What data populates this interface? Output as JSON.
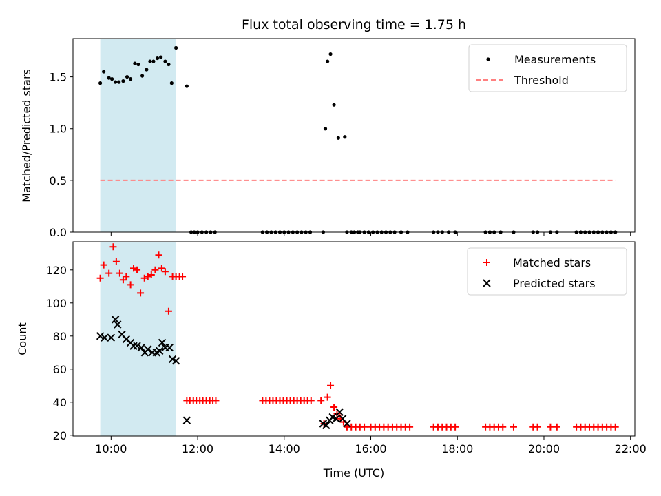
{
  "title": "Flux total observing time = 1.75 h",
  "colors": {
    "shade": "#add8e6",
    "threshold": "#ff8080",
    "matched": "#ff0000",
    "predicted": "#000000",
    "measurement": "#000000"
  },
  "chart_data": [
    {
      "type": "scatter",
      "ylabel": "Matched/Predicted stars",
      "xlim": [
        9.12,
        22.1
      ],
      "ylim": [
        0,
        1.87
      ],
      "yticks": [
        0.0,
        0.5,
        1.0,
        1.5
      ],
      "ytick_labels": [
        "0.0",
        "0.5",
        "1.0",
        "1.5"
      ],
      "shaded_span": [
        9.75,
        11.5
      ],
      "legend": {
        "position": "top-right",
        "entries": [
          "Measurements",
          "Threshold"
        ]
      },
      "threshold": {
        "name": "Threshold",
        "x": [
          9.75,
          21.65
        ],
        "y": 0.5
      },
      "series": [
        {
          "name": "Measurements",
          "x": [
            9.75,
            9.83,
            9.95,
            10.02,
            10.1,
            10.18,
            10.28,
            10.37,
            10.45,
            10.55,
            10.63,
            10.72,
            10.82,
            10.9,
            10.98,
            11.07,
            11.15,
            11.25,
            11.33,
            11.4,
            11.5,
            11.75,
            11.85,
            11.92,
            12.0,
            12.1,
            12.2,
            12.3,
            12.4,
            13.5,
            13.6,
            13.7,
            13.8,
            13.9,
            14.0,
            14.1,
            14.2,
            14.3,
            14.4,
            14.5,
            14.6,
            14.9,
            14.95,
            15.0,
            15.07,
            15.15,
            15.25,
            15.4,
            15.45,
            15.55,
            15.62,
            15.7,
            15.75,
            15.85,
            15.95,
            16.05,
            16.15,
            16.25,
            16.35,
            16.45,
            16.55,
            16.7,
            16.85,
            17.45,
            17.55,
            17.65,
            17.8,
            17.95,
            18.65,
            18.75,
            18.85,
            19.0,
            19.3,
            19.75,
            19.85,
            20.15,
            20.3,
            20.75,
            20.85,
            20.95,
            21.05,
            21.15,
            21.25,
            21.35,
            21.45,
            21.55,
            21.65
          ],
          "y": [
            1.44,
            1.55,
            1.49,
            1.48,
            1.45,
            1.45,
            1.46,
            1.5,
            1.48,
            1.63,
            1.62,
            1.51,
            1.57,
            1.65,
            1.65,
            1.68,
            1.69,
            1.65,
            1.62,
            1.44,
            1.78,
            1.41,
            0,
            0,
            0,
            0,
            0,
            0,
            0,
            0,
            0,
            0,
            0,
            0,
            0,
            0,
            0,
            0,
            0,
            0,
            0,
            0,
            1.0,
            1.65,
            1.72,
            1.23,
            0.91,
            0.92,
            0,
            0,
            0,
            0,
            0,
            0,
            0,
            0,
            0,
            0,
            0,
            0,
            0,
            0,
            0,
            0,
            0,
            0,
            0,
            0,
            0,
            0,
            0,
            0,
            0,
            0,
            0,
            0,
            0,
            0,
            0,
            0,
            0,
            0,
            0,
            0,
            0,
            0,
            0
          ]
        }
      ]
    },
    {
      "type": "scatter",
      "xlabel": "Time (UTC)",
      "ylabel": "Count",
      "xlim": [
        9.12,
        22.1
      ],
      "ylim": [
        19.5,
        137
      ],
      "xticks": [
        10,
        12,
        14,
        16,
        18,
        20,
        22
      ],
      "xtick_labels": [
        "10:00",
        "12:00",
        "14:00",
        "16:00",
        "18:00",
        "20:00",
        "22:00"
      ],
      "yticks": [
        20,
        40,
        60,
        80,
        100,
        120
      ],
      "ytick_labels": [
        "20",
        "40",
        "60",
        "80",
        "100",
        "120"
      ],
      "shaded_span": [
        9.75,
        11.5
      ],
      "legend": {
        "position": "top-right",
        "entries": [
          "Matched stars",
          "Predicted stars"
        ]
      },
      "series": [
        {
          "name": "Matched stars",
          "marker": "plus",
          "x": [
            9.75,
            9.83,
            9.95,
            10.05,
            10.12,
            10.2,
            10.28,
            10.35,
            10.45,
            10.52,
            10.6,
            10.68,
            10.77,
            10.85,
            10.93,
            11.02,
            11.1,
            11.17,
            11.25,
            11.33,
            11.42,
            11.5,
            11.58,
            11.65,
            11.75,
            11.82,
            11.9,
            11.97,
            12.05,
            12.12,
            12.2,
            12.28,
            12.35,
            12.42,
            13.5,
            13.58,
            13.66,
            13.74,
            13.82,
            13.9,
            13.98,
            14.06,
            14.14,
            14.22,
            14.3,
            14.38,
            14.46,
            14.54,
            14.62,
            14.85,
            14.92,
            15.0,
            15.07,
            15.15,
            15.22,
            15.3,
            15.37,
            15.45,
            15.55,
            15.65,
            15.75,
            15.85,
            16.0,
            16.1,
            16.2,
            16.3,
            16.4,
            16.5,
            16.6,
            16.7,
            16.8,
            16.9,
            17.45,
            17.55,
            17.65,
            17.75,
            17.85,
            17.95,
            18.65,
            18.75,
            18.85,
            18.95,
            19.05,
            19.3,
            19.75,
            19.85,
            20.15,
            20.3,
            20.75,
            20.85,
            20.95,
            21.05,
            21.15,
            21.25,
            21.35,
            21.45,
            21.55,
            21.65
          ],
          "y": [
            115,
            123,
            118,
            134,
            125,
            118,
            114,
            116,
            111,
            121,
            120,
            106,
            115,
            116,
            117,
            120,
            129,
            121,
            119,
            95,
            116,
            116,
            116,
            116,
            41,
            41,
            41,
            41,
            41,
            41,
            41,
            41,
            41,
            41,
            41,
            41,
            41,
            41,
            41,
            41,
            41,
            41,
            41,
            41,
            41,
            41,
            41,
            41,
            41,
            41,
            27,
            43,
            50,
            37,
            33,
            30,
            28,
            25,
            25,
            25,
            25,
            25,
            25,
            25,
            25,
            25,
            25,
            25,
            25,
            25,
            25,
            25,
            25,
            25,
            25,
            25,
            25,
            25,
            25,
            25,
            25,
            25,
            25,
            25,
            25,
            25,
            25,
            25,
            25,
            25,
            25,
            25,
            25,
            25,
            25,
            25,
            25,
            25
          ]
        },
        {
          "name": "Predicted stars",
          "marker": "x",
          "x": [
            9.75,
            9.85,
            10.0,
            10.1,
            10.15,
            10.25,
            10.35,
            10.45,
            10.52,
            10.6,
            10.7,
            10.78,
            10.85,
            10.95,
            11.05,
            11.12,
            11.18,
            11.25,
            11.35,
            11.42,
            11.5,
            11.75,
            14.9,
            14.97,
            15.05,
            15.12,
            15.2,
            15.28,
            15.35,
            15.45
          ],
          "y": [
            80,
            79,
            79,
            90,
            87,
            81,
            78,
            76,
            74,
            74,
            73,
            70,
            72,
            70,
            70,
            71,
            76,
            73,
            73,
            66,
            65,
            29,
            27,
            26,
            29,
            31,
            30,
            34,
            30,
            27
          ]
        }
      ]
    }
  ]
}
